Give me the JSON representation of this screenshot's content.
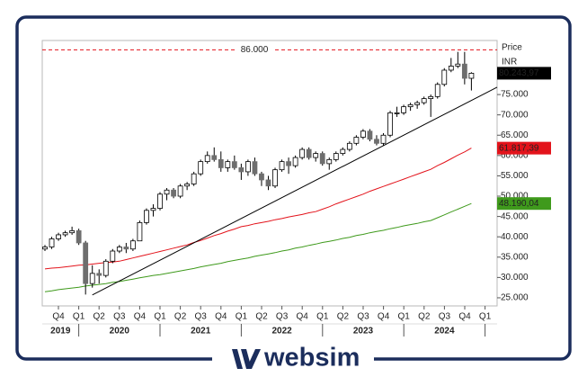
{
  "chart_data": {
    "type": "candlestick",
    "y_axis_title": "Price",
    "y_axis_unit": "INR",
    "ylim": [
      23,
      88.3
    ],
    "yticks": [
      {
        "value": 25,
        "label": "25.000"
      },
      {
        "value": 30,
        "label": "30.000"
      },
      {
        "value": 35,
        "label": "35.000"
      },
      {
        "value": 40,
        "label": "40.000"
      },
      {
        "value": 45,
        "label": "45.000"
      },
      {
        "value": 50,
        "label": "50.000"
      },
      {
        "value": 55,
        "label": "55.000"
      },
      {
        "value": 60,
        "label": "60.000"
      },
      {
        "value": 65,
        "label": "65.000"
      },
      {
        "value": 70,
        "label": "70.000"
      },
      {
        "value": 75,
        "label": "75.000"
      }
    ],
    "quarters": [
      "Q4",
      "Q1",
      "Q2",
      "Q3",
      "Q4",
      "Q1",
      "Q2",
      "Q3",
      "Q4",
      "Q1",
      "Q2",
      "Q3",
      "Q4",
      "Q1",
      "Q2",
      "Q3",
      "Q4",
      "Q1",
      "Q2",
      "Q3",
      "Q4",
      "Q1"
    ],
    "years": [
      "2019",
      "2020",
      "2021",
      "2022",
      "2023",
      "2024"
    ],
    "up_color": "#ffffff",
    "down_color": "#6e6e6e",
    "open": [
      37,
      37.5,
      39.5,
      40.5,
      41,
      41.5,
      38.5,
      28.5,
      31,
      30.5,
      34,
      36.5,
      37.5,
      37,
      39,
      43.5,
      46.5,
      47,
      50.5,
      51.5,
      50,
      52.5,
      53,
      55.5,
      58.5,
      60,
      59,
      57,
      58.5,
      57,
      56,
      58.5,
      55.5,
      54,
      52.5,
      56.5,
      58.5,
      57.5,
      59.5,
      61.5,
      59.5,
      60.5,
      58,
      59,
      60.5,
      61.5,
      63,
      64.5,
      66,
      64,
      63,
      65,
      70.5,
      70.5,
      72,
      72.5,
      73,
      74,
      74.5,
      77.5,
      81,
      82,
      82.5,
      79
    ],
    "high": [
      38,
      40,
      41,
      41.5,
      42.5,
      42,
      39,
      33,
      32,
      34.5,
      37,
      38,
      38.5,
      39.5,
      44,
      47,
      48,
      51,
      52,
      52,
      53,
      53.5,
      56,
      59,
      61,
      62,
      61,
      59,
      60,
      58,
      59,
      59.5,
      56,
      55,
      57,
      59,
      59.5,
      60,
      62,
      62,
      61,
      61,
      59.5,
      61,
      62,
      63.5,
      65,
      66.5,
      66.5,
      65,
      65.5,
      71,
      72,
      72.5,
      73,
      73.5,
      74.5,
      75,
      78,
      81.5,
      84,
      85.5,
      85.5,
      80.5
    ],
    "low": [
      36.5,
      37,
      39,
      40,
      40.5,
      38,
      25.8,
      27.5,
      28.5,
      30,
      33.5,
      36,
      36,
      36.5,
      39,
      43,
      45,
      46.5,
      49,
      49.5,
      49.5,
      51.5,
      52.5,
      55,
      58,
      58.5,
      56,
      56,
      56.5,
      54,
      55,
      55,
      52.5,
      51.5,
      52,
      56,
      55.5,
      57,
      59,
      59,
      58.5,
      57.5,
      56.5,
      58.5,
      60,
      61,
      62.5,
      64,
      63.5,
      62.5,
      62.5,
      64.5,
      69.5,
      70,
      71,
      71.5,
      72.5,
      69.5,
      74,
      77,
      80.5,
      81.5,
      77.5,
      76
    ],
    "close": [
      37.5,
      39.5,
      40.5,
      41,
      41.5,
      38.5,
      28.5,
      31,
      30.5,
      34,
      36.5,
      37.5,
      37,
      39,
      43.5,
      46.5,
      47,
      50.5,
      51.5,
      50,
      52.5,
      53,
      55.5,
      58.5,
      60,
      59,
      57,
      58.5,
      57,
      56,
      58.5,
      55.5,
      54,
      52.5,
      56.5,
      58.5,
      57.5,
      59.5,
      61.5,
      59.5,
      60.5,
      58,
      59,
      60.5,
      61.5,
      63,
      64.5,
      66,
      64,
      63,
      65,
      70.5,
      70.5,
      72,
      72.5,
      73,
      74,
      74.5,
      77.5,
      81,
      82,
      82.5,
      79,
      80.24397
    ],
    "close_label": "80.243,97",
    "series": [
      {
        "color": "#e3131b",
        "end_label": "61.817,39",
        "values": [
          32.1,
          32.3,
          32.4,
          32.6,
          32.8,
          33.0,
          33.1,
          33.3,
          33.5,
          33.7,
          33.8,
          34.0,
          34.4,
          34.8,
          35.2,
          35.6,
          36.0,
          36.4,
          36.8,
          37.2,
          37.6,
          38.0,
          38.6,
          39.1,
          39.7,
          40.3,
          40.8,
          41.4,
          41.9,
          42.5,
          42.8,
          43.2,
          43.5,
          43.8,
          44.2,
          44.5,
          44.9,
          45.2,
          45.5,
          45.9,
          46.2,
          46.8,
          47.4,
          48.1,
          48.7,
          49.3,
          49.9,
          50.5,
          51.2,
          51.8,
          52.4,
          53.0,
          53.6,
          54.2,
          54.8,
          55.4,
          56.0,
          56.6,
          57.5,
          58.3,
          59.2,
          60.1,
          60.9,
          61.81739
        ]
      },
      {
        "color": "#3f9a1c",
        "end_label": "48.190,04",
        "values": [
          26.5,
          26.7,
          27.0,
          27.2,
          27.4,
          27.6,
          27.9,
          28.1,
          28.3,
          28.5,
          28.8,
          29.0,
          29.3,
          29.6,
          29.9,
          30.2,
          30.5,
          30.7,
          31.0,
          31.3,
          31.6,
          31.9,
          32.2,
          32.6,
          32.9,
          33.2,
          33.5,
          33.9,
          34.2,
          34.5,
          34.8,
          35.2,
          35.5,
          35.8,
          36.1,
          36.5,
          36.8,
          37.2,
          37.5,
          37.9,
          38.2,
          38.6,
          38.9,
          39.2,
          39.6,
          39.9,
          40.3,
          40.6,
          41.0,
          41.3,
          41.6,
          42.0,
          42.3,
          42.7,
          43.0,
          43.3,
          43.7,
          44.0,
          44.7,
          45.4,
          46.1,
          46.8,
          47.5,
          48.19004
        ]
      }
    ],
    "trendline": [
      25.7,
      76.8
    ],
    "hline": {
      "value": 86,
      "label": "86.000",
      "color": "#e3131b"
    }
  },
  "brand": "websim"
}
